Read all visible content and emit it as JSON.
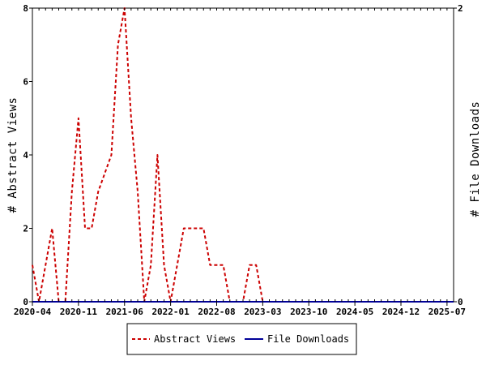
{
  "chart_data": {
    "type": "line",
    "x": [
      "2020-04",
      "2020-05",
      "2020-06",
      "2020-07",
      "2020-08",
      "2020-09",
      "2020-10",
      "2020-11",
      "2020-12",
      "2021-01",
      "2021-02",
      "2021-03",
      "2021-04",
      "2021-05",
      "2021-06",
      "2021-07",
      "2021-08",
      "2021-09",
      "2021-10",
      "2021-11",
      "2021-12",
      "2022-01",
      "2022-02",
      "2022-03",
      "2022-04",
      "2022-05",
      "2022-06",
      "2022-07",
      "2022-08",
      "2022-09",
      "2022-10",
      "2022-11",
      "2022-12",
      "2023-01",
      "2023-02",
      "2023-03",
      "2023-04",
      "2023-05",
      "2023-06",
      "2023-07",
      "2023-08",
      "2023-09",
      "2023-10",
      "2023-11",
      "2023-12",
      "2024-01",
      "2024-02",
      "2024-03",
      "2024-04",
      "2024-05",
      "2024-06",
      "2024-07",
      "2024-08",
      "2024-09",
      "2024-10",
      "2024-11",
      "2024-12",
      "2025-01",
      "2025-02",
      "2025-03",
      "2025-04",
      "2025-05",
      "2025-06",
      "2025-07",
      "2025-08"
    ],
    "xticks": [
      "2020-04",
      "2020-11",
      "2021-06",
      "2022-01",
      "2022-08",
      "2023-03",
      "2023-10",
      "2024-05",
      "2024-12",
      "2025-07"
    ],
    "series": [
      {
        "name": "Abstract Views",
        "axis": "left",
        "color": "#cc0000",
        "style": "dashed",
        "values": [
          1,
          0,
          1,
          2,
          0,
          0,
          3,
          5,
          2,
          2,
          3,
          3.5,
          4,
          7,
          8,
          5,
          3,
          0,
          1,
          4,
          1,
          0,
          1,
          2,
          2,
          2,
          2,
          1,
          1,
          1,
          0,
          0,
          0,
          1,
          1,
          0,
          0,
          0,
          0,
          0,
          0,
          0,
          0,
          0,
          0,
          0,
          0,
          0,
          0,
          0,
          0,
          0,
          0,
          0,
          0,
          0,
          0,
          0,
          0,
          0,
          0,
          0,
          0,
          0,
          0
        ]
      },
      {
        "name": "File Downloads",
        "axis": "right",
        "color": "#000099",
        "style": "solid",
        "values": [
          0,
          0,
          0,
          0,
          0,
          0,
          0,
          0,
          0,
          0,
          0,
          0,
          0,
          0,
          0,
          0,
          0,
          0,
          0,
          0,
          0,
          0,
          0,
          0,
          0,
          0,
          0,
          0,
          0,
          0,
          0,
          0,
          0,
          0,
          0,
          0,
          0,
          0,
          0,
          0,
          0,
          0,
          0,
          0,
          0,
          0,
          0,
          0,
          0,
          0,
          0,
          0,
          0,
          0,
          0,
          0,
          0,
          0,
          0,
          0,
          0,
          0,
          0,
          0,
          0
        ]
      }
    ],
    "ylabel": "# Abstract Views",
    "y2label": "# File Downloads",
    "ylim": [
      0,
      8
    ],
    "y2lim": [
      0,
      2
    ],
    "yticks": [
      0,
      2,
      4,
      6,
      8
    ],
    "y2ticks": [
      0,
      2
    ],
    "grid": false,
    "legend_position": "bottom-center"
  }
}
